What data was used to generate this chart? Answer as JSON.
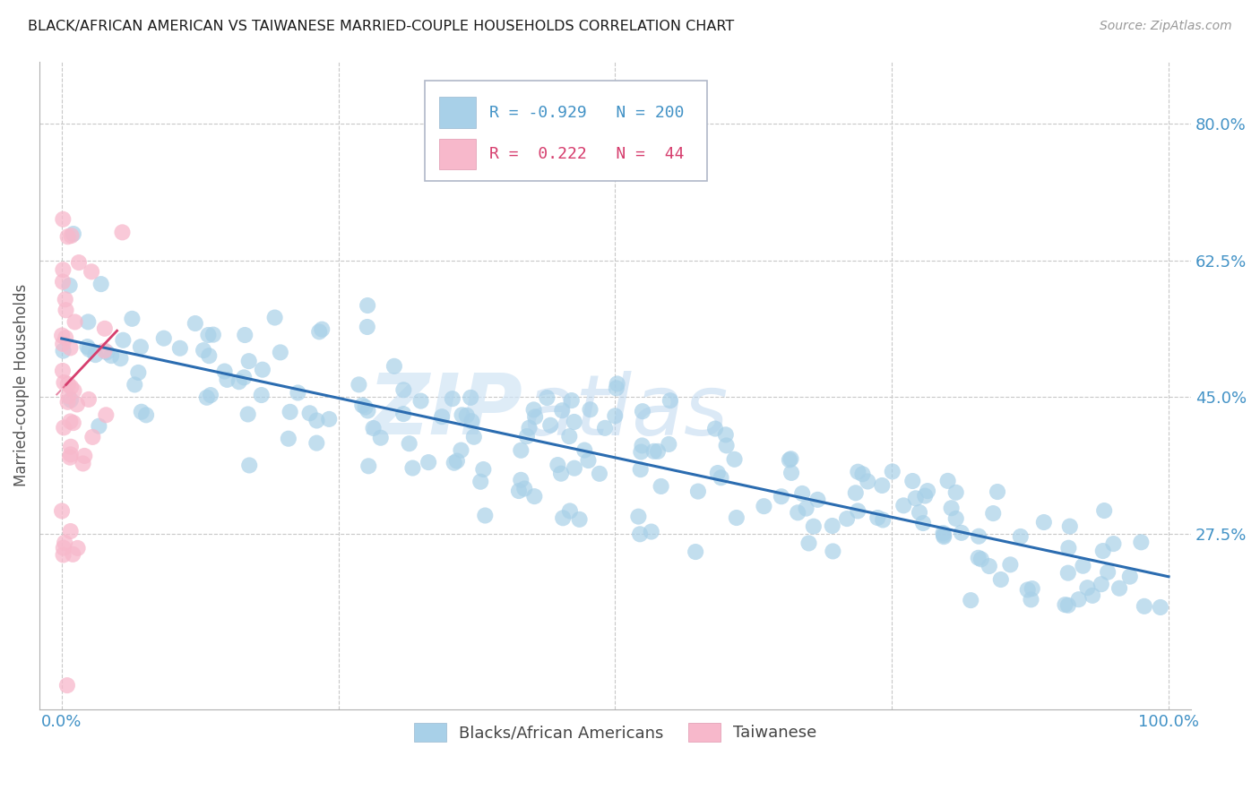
{
  "title": "BLACK/AFRICAN AMERICAN VS TAIWANESE MARRIED-COUPLE HOUSEHOLDS CORRELATION CHART",
  "source": "Source: ZipAtlas.com",
  "ylabel": "Married-couple Households",
  "watermark_zip": "ZIP",
  "watermark_atlas": "atlas",
  "blue_R": -0.929,
  "blue_N": 200,
  "pink_R": 0.222,
  "pink_N": 44,
  "ytick_labels": [
    "80.0%",
    "62.5%",
    "45.0%",
    "27.5%"
  ],
  "ytick_values": [
    0.8,
    0.625,
    0.45,
    0.275
  ],
  "xlim": [
    -0.02,
    1.02
  ],
  "ylim": [
    0.05,
    0.88
  ],
  "blue_color": "#a8d0e8",
  "blue_scatter_alpha": 0.7,
  "blue_line_color": "#2b6cb0",
  "blue_intercept": 0.525,
  "blue_slope": -0.305,
  "blue_noise_std": 0.048,
  "pink_color": "#f7b8cb",
  "pink_scatter_alpha": 0.75,
  "pink_line_color": "#d63e6e",
  "pink_intercept": 0.46,
  "pink_slope": 1.5,
  "pink_noise_std": 0.14,
  "grid_color": "#c8c8c8",
  "title_color": "#1a1a1a",
  "axis_label_color": "#555555",
  "tick_label_color_right": "#4292c6",
  "tick_label_color_bottom": "#4292c6",
  "source_color": "#999999",
  "legend_text_color": "#4292c6",
  "legend_border_color": "#b0b8c8",
  "scatter_size": 170
}
